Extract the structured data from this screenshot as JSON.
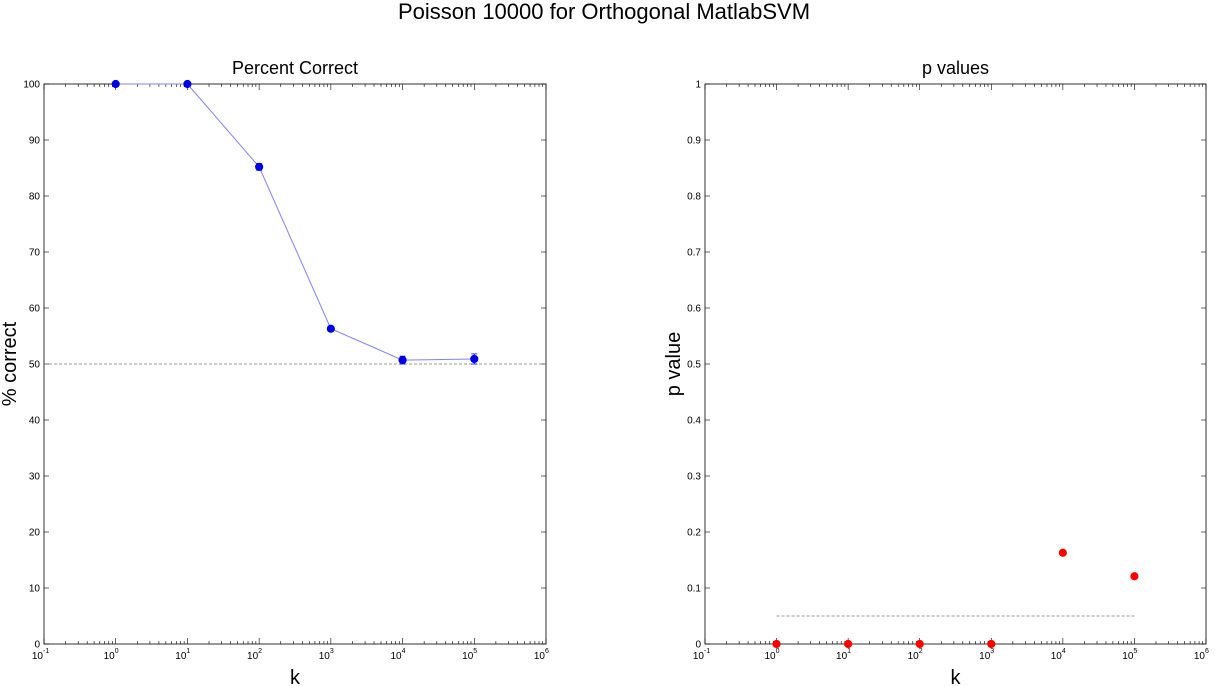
{
  "figure": {
    "suptitle": "Poisson 10000 for Orthogonal MatlabSVM"
  },
  "chart_data": [
    {
      "type": "line",
      "title": "Percent Correct",
      "xlabel": "k",
      "ylabel": "% correct",
      "xscale": "log",
      "xlim": [
        0.1,
        1000000
      ],
      "ylim": [
        0,
        100
      ],
      "x_tick_labels": [
        {
          "base": "10",
          "exp": "-1"
        },
        {
          "base": "10",
          "exp": "0"
        },
        {
          "base": "10",
          "exp": "1"
        },
        {
          "base": "10",
          "exp": "2"
        },
        {
          "base": "10",
          "exp": "3"
        },
        {
          "base": "10",
          "exp": "4"
        },
        {
          "base": "10",
          "exp": "5"
        },
        {
          "base": "10",
          "exp": "6"
        }
      ],
      "y_tick_labels": [
        "0",
        "10",
        "20",
        "30",
        "40",
        "50",
        "60",
        "70",
        "80",
        "90",
        "100"
      ],
      "grid": false,
      "reference_line": {
        "y": 50,
        "style": "dashed",
        "color": "#777777"
      },
      "series": [
        {
          "x": [
            1,
            10,
            100,
            1000,
            10000,
            100000
          ],
          "y": [
            100,
            100,
            85.2,
            56.3,
            50.7,
            50.9
          ],
          "error": [
            0,
            0,
            0.6,
            0.3,
            0.7,
            0.9
          ],
          "color": "#0000e6",
          "line_color": "#8080ff",
          "marker": "circle"
        }
      ]
    },
    {
      "type": "scatter",
      "title": "p values",
      "xlabel": "k",
      "ylabel": "p value",
      "xscale": "log",
      "xlim": [
        0.1,
        1000000
      ],
      "ylim": [
        0,
        1
      ],
      "x_tick_labels": [
        {
          "base": "10",
          "exp": "-1"
        },
        {
          "base": "10",
          "exp": "0"
        },
        {
          "base": "10",
          "exp": "1"
        },
        {
          "base": "10",
          "exp": "2"
        },
        {
          "base": "10",
          "exp": "3"
        },
        {
          "base": "10",
          "exp": "4"
        },
        {
          "base": "10",
          "exp": "5"
        },
        {
          "base": "10",
          "exp": "6"
        }
      ],
      "y_tick_labels": [
        "0",
        "0.1",
        "0.2",
        "0.3",
        "0.4",
        "0.5",
        "0.6",
        "0.7",
        "0.8",
        "0.9",
        "1"
      ],
      "grid": false,
      "reference_line": {
        "y": 0.05,
        "x_range": [
          1,
          100000
        ],
        "style": "dashed",
        "color": "#777777"
      },
      "series": [
        {
          "x": [
            1,
            10,
            100,
            1000,
            10000,
            100000
          ],
          "y": [
            0.0,
            0.0,
            0.0,
            0.0,
            0.163,
            0.121
          ],
          "color": "#ff0000",
          "marker": "circle"
        }
      ]
    }
  ]
}
